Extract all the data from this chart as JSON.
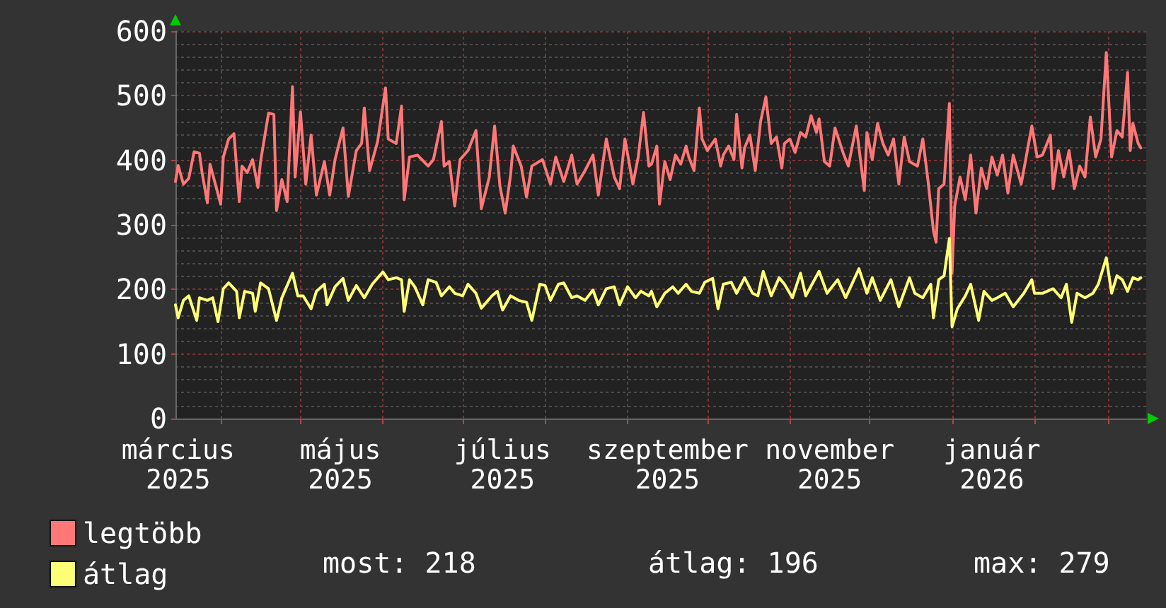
{
  "chart_data": {
    "type": "line",
    "series": [
      {
        "name": "legtöbb",
        "color": "#ff7777",
        "x": [
          "2025-03-15",
          "2025-03-16",
          "2025-03-18",
          "2025-03-20",
          "2025-03-22",
          "2025-03-24",
          "2025-03-25",
          "2025-03-27",
          "2025-03-28",
          "2025-03-30",
          "2025-04-01",
          "2025-04-02",
          "2025-04-04",
          "2025-04-06",
          "2025-04-08",
          "2025-04-09",
          "2025-04-11",
          "2025-04-13",
          "2025-04-15",
          "2025-04-16",
          "2025-04-19",
          "2025-04-21",
          "2025-04-22",
          "2025-04-24",
          "2025-04-26",
          "2025-04-28",
          "2025-04-29",
          "2025-05-01",
          "2025-05-03",
          "2025-05-05",
          "2025-05-07",
          "2025-05-10",
          "2025-05-12",
          "2025-05-14",
          "2025-05-17",
          "2025-05-19",
          "2025-05-22",
          "2025-05-24",
          "2025-05-25",
          "2025-05-27",
          "2025-05-30",
          "2025-06-02",
          "2025-06-03",
          "2025-06-06",
          "2025-06-08",
          "2025-06-09",
          "2025-06-11",
          "2025-06-14",
          "2025-06-18",
          "2025-06-20",
          "2025-06-23",
          "2025-06-24",
          "2025-06-26",
          "2025-06-28",
          "2025-06-30",
          "2025-07-03",
          "2025-07-06",
          "2025-07-08",
          "2025-07-11",
          "2025-07-13",
          "2025-07-15",
          "2025-07-17",
          "2025-07-19",
          "2025-07-20",
          "2025-07-23",
          "2025-07-25",
          "2025-07-27",
          "2025-07-31",
          "2025-08-03",
          "2025-08-05",
          "2025-08-08",
          "2025-08-11",
          "2025-08-13",
          "2025-08-16",
          "2025-08-19",
          "2025-08-21",
          "2025-08-24",
          "2025-08-27",
          "2025-08-29",
          "2025-08-31",
          "2025-09-03",
          "2025-09-05",
          "2025-09-07",
          "2025-09-09",
          "2025-09-10",
          "2025-09-12",
          "2025-09-13",
          "2025-09-15",
          "2025-09-17",
          "2025-09-19",
          "2025-09-21",
          "2025-09-23",
          "2025-09-24",
          "2025-09-26",
          "2025-09-28",
          "2025-09-29",
          "2025-10-01",
          "2025-10-04",
          "2025-10-06",
          "2025-10-07",
          "2025-10-09",
          "2025-10-11",
          "2025-10-12",
          "2025-10-14",
          "2025-10-15",
          "2025-10-17",
          "2025-10-19",
          "2025-10-21",
          "2025-10-23",
          "2025-10-25",
          "2025-10-27",
          "2025-10-29",
          "2025-10-30",
          "2025-11-01",
          "2025-11-03",
          "2025-11-05",
          "2025-11-07",
          "2025-11-09",
          "2025-11-11",
          "2025-11-12",
          "2025-11-14",
          "2025-11-16",
          "2025-11-18",
          "2025-11-21",
          "2025-11-23",
          "2025-11-26",
          "2025-11-29",
          "2025-11-30",
          "2025-12-02",
          "2025-12-04",
          "2025-12-06",
          "2025-12-08",
          "2025-12-10",
          "2025-12-12",
          "2025-12-14",
          "2025-12-16",
          "2025-12-19",
          "2025-12-21",
          "2025-12-23",
          "2025-12-25",
          "2025-12-26",
          "2025-12-27",
          "2025-12-29",
          "2025-12-31",
          "2026-01-01",
          "2026-01-02",
          "2026-01-04",
          "2026-01-06",
          "2026-01-08",
          "2026-01-10",
          "2026-01-12",
          "2026-01-14",
          "2026-01-16",
          "2026-01-18",
          "2026-01-20",
          "2026-01-22",
          "2026-01-24",
          "2026-01-27",
          "2026-01-29",
          "2026-01-31",
          "2026-02-02",
          "2026-02-04",
          "2026-02-07",
          "2026-02-08",
          "2026-02-10",
          "2026-02-12",
          "2026-02-14",
          "2026-02-16",
          "2026-02-18",
          "2026-02-20",
          "2026-02-22",
          "2026-02-24",
          "2026-02-26",
          "2026-02-28",
          "2026-03-02",
          "2026-03-04",
          "2026-03-06",
          "2026-03-08",
          "2026-03-09",
          "2026-03-10",
          "2026-03-12",
          "2026-03-13"
        ],
        "values": [
          367,
          392,
          363,
          372,
          413,
          411,
          381,
          334,
          394,
          363,
          332,
          405,
          433,
          441,
          336,
          391,
          381,
          401,
          358,
          398,
          473,
          471,
          322,
          370,
          336,
          514,
          374,
          475,
          363,
          439,
          346,
          398,
          346,
          401,
          450,
          344,
          415,
          426,
          481,
          384,
          429,
          512,
          433,
          426,
          484,
          339,
          405,
          408,
          391,
          401,
          460,
          391,
          398,
          329,
          401,
          415,
          446,
          325,
          374,
          453,
          360,
          318,
          377,
          422,
          391,
          343,
          391,
          401,
          363,
          405,
          367,
          408,
          363,
          384,
          408,
          346,
          433,
          374,
          356,
          433,
          363,
          405,
          474,
          391,
          394,
          422,
          332,
          398,
          370,
          408,
          394,
          422,
          405,
          384,
          481,
          433,
          415,
          433,
          391,
          408,
          422,
          401,
          471,
          388,
          419,
          439,
          384,
          460,
          498,
          426,
          436,
          388,
          426,
          433,
          412,
          443,
          436,
          469,
          443,
          464,
          398,
          391,
          450,
          412,
          391,
          453,
          353,
          443,
          401,
          457,
          426,
          408,
          433,
          363,
          436,
          398,
          391,
          433,
          367,
          291,
          273,
          356,
          363,
          488,
          225,
          329,
          374,
          339,
          408,
          318,
          388,
          356,
          405,
          377,
          408,
          349,
          408,
          363,
          408,
          453,
          405,
          408,
          439,
          356,
          415,
          374,
          415,
          356,
          391,
          374,
          467,
          405,
          433,
          567,
          405,
          446,
          436,
          536,
          415,
          457,
          426,
          419
        ]
      },
      {
        "name": "átlag",
        "color": "#ffff77",
        "x": [
          "2025-03-15",
          "2025-03-16",
          "2025-03-18",
          "2025-03-20",
          "2025-03-23",
          "2025-03-24",
          "2025-03-27",
          "2025-03-29",
          "2025-03-31",
          "2025-04-02",
          "2025-04-04",
          "2025-04-07",
          "2025-04-08",
          "2025-04-10",
          "2025-04-13",
          "2025-04-14",
          "2025-04-16",
          "2025-04-19",
          "2025-04-22",
          "2025-04-24",
          "2025-04-28",
          "2025-04-30",
          "2025-05-02",
          "2025-05-05",
          "2025-05-07",
          "2025-05-10",
          "2025-05-11",
          "2025-05-14",
          "2025-05-17",
          "2025-05-19",
          "2025-05-22",
          "2025-05-25",
          "2025-05-28",
          "2025-06-01",
          "2025-06-03",
          "2025-06-06",
          "2025-06-08",
          "2025-06-09",
          "2025-06-11",
          "2025-06-13",
          "2025-06-16",
          "2025-06-18",
          "2025-06-21",
          "2025-06-23",
          "2025-06-26",
          "2025-06-28",
          "2025-07-01",
          "2025-07-03",
          "2025-07-06",
          "2025-07-08",
          "2025-07-12",
          "2025-07-14",
          "2025-07-16",
          "2025-07-19",
          "2025-07-22",
          "2025-07-25",
          "2025-07-27",
          "2025-07-30",
          "2025-08-01",
          "2025-08-03",
          "2025-08-06",
          "2025-08-08",
          "2025-08-11",
          "2025-08-13",
          "2025-08-16",
          "2025-08-19",
          "2025-08-21",
          "2025-08-24",
          "2025-08-27",
          "2025-08-29",
          "2025-09-01",
          "2025-09-04",
          "2025-09-06",
          "2025-09-09",
          "2025-09-10",
          "2025-09-12",
          "2025-09-15",
          "2025-09-18",
          "2025-09-20",
          "2025-09-23",
          "2025-09-25",
          "2025-09-28",
          "2025-09-30",
          "2025-10-03",
          "2025-10-05",
          "2025-10-07",
          "2025-10-10",
          "2025-10-12",
          "2025-10-15",
          "2025-10-18",
          "2025-10-20",
          "2025-10-22",
          "2025-10-25",
          "2025-10-28",
          "2025-10-30",
          "2025-11-02",
          "2025-11-05",
          "2025-11-07",
          "2025-11-12",
          "2025-11-15",
          "2025-11-19",
          "2025-11-22",
          "2025-11-27",
          "2025-11-30",
          "2025-12-02",
          "2025-12-05",
          "2025-12-09",
          "2025-12-12",
          "2025-12-16",
          "2025-12-18",
          "2025-12-21",
          "2025-12-24",
          "2025-12-25",
          "2025-12-27",
          "2025-12-29",
          "2025-12-31",
          "2026-01-01",
          "2026-01-03",
          "2026-01-06",
          "2026-01-08",
          "2026-01-11",
          "2026-01-13",
          "2026-01-16",
          "2026-01-18",
          "2026-01-21",
          "2026-01-24",
          "2026-01-28",
          "2026-01-31",
          "2026-02-01",
          "2026-02-04",
          "2026-02-08",
          "2026-02-11",
          "2026-02-13",
          "2026-02-15",
          "2026-02-17",
          "2026-02-20",
          "2026-02-23",
          "2026-02-25",
          "2026-02-28",
          "2026-03-02",
          "2026-03-04",
          "2026-03-06",
          "2026-03-08",
          "2026-03-10",
          "2026-03-12",
          "2026-03-13"
        ],
        "values": [
          176,
          156,
          183,
          190,
          152,
          187,
          183,
          187,
          150,
          201,
          210,
          197,
          156,
          197,
          194,
          166,
          210,
          201,
          152,
          187,
          225,
          190,
          190,
          170,
          197,
          208,
          176,
          204,
          217,
          183,
          206,
          187,
          208,
          227,
          215,
          218,
          215,
          166,
          215,
          204,
          176,
          215,
          211,
          190,
          204,
          194,
          190,
          208,
          194,
          171,
          190,
          197,
          168,
          190,
          183,
          180,
          152,
          208,
          206,
          183,
          208,
          210,
          187,
          190,
          183,
          199,
          176,
          201,
          204,
          176,
          204,
          187,
          197,
          190,
          197,
          173,
          194,
          204,
          194,
          208,
          197,
          194,
          211,
          217,
          170,
          208,
          211,
          194,
          218,
          194,
          190,
          228,
          190,
          218,
          208,
          187,
          225,
          190,
          228,
          194,
          215,
          187,
          232,
          194,
          218,
          183,
          215,
          173,
          218,
          194,
          187,
          208,
          156,
          215,
          221,
          279,
          142,
          170,
          190,
          208,
          152,
          197,
          183,
          187,
          194,
          173,
          194,
          215,
          194,
          194,
          201,
          187,
          208,
          149,
          194,
          187,
          194,
          208,
          249,
          194,
          221,
          215,
          197,
          218,
          215,
          218
        ]
      }
    ],
    "xlim": [
      "2025-03-15",
      "2026-03-15"
    ],
    "xticks": [
      {
        "value": "2025-03-16",
        "label": "március 2025"
      },
      {
        "value": "2025-04-01",
        "label": null
      },
      {
        "value": "2025-05-01",
        "label": null
      },
      {
        "value": "2025-05-16",
        "label": "május 2025"
      },
      {
        "value": "2025-06-01",
        "label": null
      },
      {
        "value": "2025-07-01",
        "label": null
      },
      {
        "value": "2025-07-16",
        "label": "július 2025"
      },
      {
        "value": "2025-08-01",
        "label": null
      },
      {
        "value": "2025-09-01",
        "label": null
      },
      {
        "value": "2025-09-16",
        "label": "szeptember 2025"
      },
      {
        "value": "2025-10-01",
        "label": null
      },
      {
        "value": "2025-11-01",
        "label": null
      },
      {
        "value": "2025-11-16",
        "label": "november 2025"
      },
      {
        "value": "2025-12-01",
        "label": null
      },
      {
        "value": "2026-01-01",
        "label": null
      },
      {
        "value": "2026-01-16",
        "label": "január 2026"
      },
      {
        "value": "2026-02-01",
        "label": null
      },
      {
        "value": "2026-03-01",
        "label": null
      }
    ],
    "ylim": [
      0,
      600
    ],
    "yticks": [
      0,
      100,
      200,
      300,
      400,
      500,
      600
    ],
    "grid": true,
    "legend": "bottom left",
    "marker": "none",
    "annotations": [
      "most: 218",
      "átlag: 196",
      "max: 279"
    ]
  }
}
